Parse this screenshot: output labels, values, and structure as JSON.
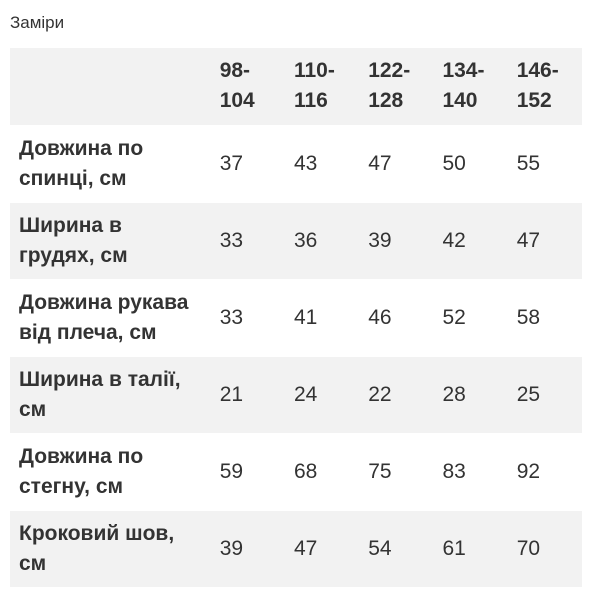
{
  "title": "Заміри",
  "table": {
    "sizes": [
      "98-104",
      "110-116",
      "122-128",
      "134-140",
      "146-152"
    ],
    "size_parts": [
      [
        "98-",
        "104"
      ],
      [
        "110-",
        "116"
      ],
      [
        "122-",
        "128"
      ],
      [
        "134-",
        "140"
      ],
      [
        "146-",
        "152"
      ]
    ],
    "rows": [
      {
        "label_lines": [
          "Довжина по",
          "спинці, см"
        ],
        "values": [
          "37",
          "43",
          "47",
          "50",
          "55"
        ]
      },
      {
        "label_lines": [
          "Ширина в",
          "грудях, см"
        ],
        "values": [
          "33",
          "36",
          "39",
          "42",
          "47"
        ]
      },
      {
        "label_lines": [
          "Довжина рукава",
          "від плеча, см"
        ],
        "values": [
          "33",
          "41",
          "46",
          "52",
          "58"
        ]
      },
      {
        "label_lines": [
          "Ширина в талії,",
          "см"
        ],
        "values": [
          "21",
          "24",
          "22",
          "28",
          "25"
        ]
      },
      {
        "label_lines": [
          "Довжина по",
          "стегну, см"
        ],
        "values": [
          "59",
          "68",
          "75",
          "83",
          "92"
        ]
      },
      {
        "label_lines": [
          "Кроковий шов,",
          "см"
        ],
        "values": [
          "39",
          "47",
          "54",
          "61",
          "70"
        ]
      }
    ]
  }
}
